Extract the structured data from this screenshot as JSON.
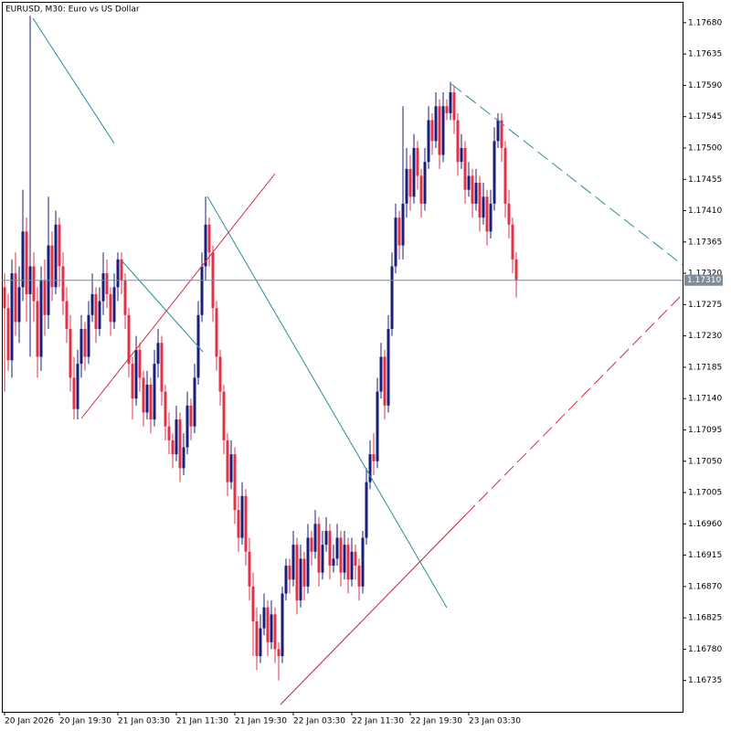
{
  "chart_data": {
    "type": "candlestick",
    "title": "EURUSD, M30:  Euro vs US Dollar",
    "up_color": "#1a1f7a",
    "down_color": "#e0334a",
    "price_line_color": "#7f8c9a",
    "current_price": {
      "value": 1.1731,
      "label": "1.17310"
    },
    "ylim": [
      1.1669,
      1.1771
    ],
    "yticks": [
      {
        "value": 1.1768,
        "label": "1.17680"
      },
      1.17635,
      {
        "value": 1.1759,
        "label": "1.17590"
      },
      1.17545,
      {
        "value": 1.175,
        "label": "1.17500"
      },
      1.17455,
      {
        "value": 1.1741,
        "label": "1.17410"
      },
      1.17365,
      {
        "value": 1.1732,
        "label": "1.17320"
      },
      1.17275,
      {
        "value": 1.1723,
        "label": "1.17230"
      },
      1.17185,
      {
        "value": 1.1714,
        "label": "1.17140"
      },
      1.17095,
      {
        "value": 1.1705,
        "label": "1.17050"
      },
      1.17005,
      {
        "value": 1.1696,
        "label": "1.16960"
      },
      1.16915,
      {
        "value": 1.1687,
        "label": "1.16870"
      },
      1.16825,
      {
        "value": 1.1678,
        "label": "1.16780"
      },
      1.16735
    ],
    "categories": [
      "20 Jan 2026",
      null,
      null,
      null,
      null,
      null,
      null,
      null,
      null,
      null,
      null,
      null,
      null,
      null,
      null,
      "20 Jan 19:30",
      null,
      null,
      null,
      null,
      null,
      null,
      null,
      null,
      null,
      null,
      null,
      null,
      null,
      null,
      null,
      "21 Jan 03:30",
      null,
      null,
      null,
      null,
      null,
      null,
      null,
      null,
      null,
      null,
      null,
      null,
      null,
      null,
      null,
      "21 Jan 11:30",
      null,
      null,
      null,
      null,
      null,
      null,
      null,
      null,
      null,
      null,
      null,
      null,
      null,
      null,
      null,
      "21 Jan 19:30",
      null,
      null,
      null,
      null,
      null,
      null,
      null,
      null,
      null,
      null,
      null,
      null,
      null,
      null,
      null,
      "22 Jan 03:30",
      null,
      null,
      null,
      null,
      null,
      null,
      null,
      null,
      null,
      null,
      null,
      null,
      null,
      null,
      null,
      "22 Jan 11:30",
      null,
      null,
      null,
      null,
      null,
      null,
      null,
      null,
      null,
      null,
      null,
      null,
      null,
      null,
      null,
      "22 Jan 19:30",
      null,
      null,
      null,
      null,
      null,
      null,
      null,
      null,
      null,
      null,
      null,
      null,
      null,
      null,
      null,
      "23 Jan 03:30",
      null,
      null,
      null,
      null,
      null,
      null,
      null,
      null,
      null,
      null,
      null,
      null,
      null
    ],
    "open": [
      1.173,
      1.1727,
      1.17195,
      1.1732,
      1.1725,
      1.173,
      1.1738,
      1.1729,
      1.1733,
      1.1728,
      1.172,
      1.1731,
      1.1726,
      1.1736,
      1.173,
      1.1739,
      1.1733,
      1.1728,
      1.1724,
      1.1717,
      1.17125,
      1.1719,
      1.1724,
      1.172,
      1.1726,
      1.1729,
      1.1724,
      1.1728,
      1.1732,
      1.1729,
      1.1725,
      1.173,
      1.1734,
      1.1731,
      1.1726,
      1.1719,
      1.1714,
      1.1721,
      1.1717,
      1.1712,
      1.1716,
      1.1711,
      1.1719,
      1.1722,
      1.1715,
      1.171,
      1.1708,
      1.1706,
      1.1711,
      1.1704,
      1.1707,
      1.1713,
      1.171,
      1.1717,
      1.1726,
      1.1733,
      1.1739,
      1.1735,
      1.1727,
      1.172,
      1.1715,
      1.1708,
      1.1702,
      1.1706,
      1.1698,
      1.1694,
      1.17,
      1.1692,
      1.1687,
      1.1682,
      1.1677,
      1.1681,
      1.1684,
      1.1679,
      1.1683,
      1.1678,
      1.1677,
      1.1686,
      1.169,
      1.1688,
      1.1693,
      1.1685,
      1.1691,
      1.1687,
      1.1694,
      1.1692,
      1.1696,
      1.1689,
      1.1693,
      1.1695,
      1.169,
      1.1691,
      1.1694,
      1.1689,
      1.1693,
      1.1688,
      1.1692,
      1.169,
      1.1687,
      1.1694,
      1.1702,
      1.1706,
      1.1705,
      1.1715,
      1.172,
      1.1713,
      1.1724,
      1.1733,
      1.174,
      1.1736,
      1.1742,
      1.1747,
      1.1743,
      1.175,
      1.1746,
      1.1742,
      1.1748,
      1.1754,
      1.1751,
      1.1756,
      1.1749,
      1.1756,
      1.1755,
      1.1758,
      1.1754,
      1.1748,
      1.175,
      1.1744,
      1.1746,
      1.1742,
      1.1745,
      1.174,
      1.1743,
      1.1738,
      1.1742,
      1.1751,
      1.1754,
      1.175,
      1.1742,
      1.1739,
      1.1734
    ],
    "high": [
      1.1732,
      1.1729,
      1.1734,
      1.1735,
      1.1733,
      1.1744,
      1.174,
      1.1769,
      1.1735,
      1.173,
      1.1733,
      1.1734,
      1.1743,
      1.1738,
      1.1741,
      1.174,
      1.1735,
      1.173,
      1.1726,
      1.172,
      1.1721,
      1.1726,
      1.1725,
      1.1728,
      1.1732,
      1.173,
      1.173,
      1.1735,
      1.1734,
      1.173,
      1.1732,
      1.1735,
      1.1735,
      1.1732,
      1.1727,
      1.172,
      1.1723,
      1.1722,
      1.1718,
      1.1718,
      1.1717,
      1.1721,
      1.1724,
      1.1723,
      1.1716,
      1.1712,
      1.1709,
      1.1713,
      1.1712,
      1.1709,
      1.1715,
      1.1714,
      1.1719,
      1.1728,
      1.1735,
      1.1743,
      1.174,
      1.1736,
      1.1728,
      1.1721,
      1.1716,
      1.1709,
      1.1708,
      1.1707,
      1.17,
      1.1702,
      1.1701,
      1.1694,
      1.1689,
      1.1684,
      1.1683,
      1.1686,
      1.1685,
      1.1685,
      1.1684,
      1.1679,
      1.1687,
      1.1691,
      1.1691,
      1.1695,
      1.1694,
      1.1693,
      1.1692,
      1.1696,
      1.1695,
      1.1698,
      1.1697,
      1.1695,
      1.1697,
      1.1696,
      1.1693,
      1.1696,
      1.1695,
      1.1695,
      1.1694,
      1.1694,
      1.1693,
      1.1691,
      1.1695,
      1.1704,
      1.1708,
      1.1709,
      1.1717,
      1.1722,
      1.1721,
      1.1726,
      1.1735,
      1.1742,
      1.1741,
      1.1756,
      1.175,
      1.1749,
      1.1752,
      1.1751,
      1.1747,
      1.175,
      1.1756,
      1.1755,
      1.1758,
      1.1757,
      1.1758,
      1.1757,
      1.17595,
      1.1759,
      1.1755,
      1.1752,
      1.1751,
      1.1748,
      1.1747,
      1.1747,
      1.1746,
      1.1745,
      1.1744,
      1.1744,
      1.1753,
      1.1755,
      1.1755,
      1.1751,
      1.1744,
      1.174,
      1.1735
    ],
    "low": [
      1.1715,
      1.1718,
      1.1717,
      1.1723,
      1.1722,
      1.1728,
      1.1725,
      1.172,
      1.1725,
      1.1717,
      1.1718,
      1.1723,
      1.1724,
      1.1728,
      1.1729,
      1.173,
      1.1726,
      1.1722,
      1.1715,
      1.1711,
      1.1711,
      1.1717,
      1.1718,
      1.1719,
      1.1725,
      1.1722,
      1.1723,
      1.1726,
      1.1727,
      1.1723,
      1.1724,
      1.1728,
      1.1729,
      1.1724,
      1.1717,
      1.1711,
      1.1713,
      1.1715,
      1.171,
      1.1711,
      1.1709,
      1.171,
      1.1717,
      1.1713,
      1.1708,
      1.1706,
      1.1704,
      1.1705,
      1.1702,
      1.1703,
      1.1706,
      1.1708,
      1.1709,
      1.1716,
      1.1725,
      1.1731,
      1.1733,
      1.1725,
      1.1718,
      1.1713,
      1.1706,
      1.17,
      1.1701,
      1.1696,
      1.1692,
      1.1693,
      1.169,
      1.1685,
      1.1677,
      1.1675,
      1.1676,
      1.168,
      1.1677,
      1.1678,
      1.1676,
      1.16735,
      1.1676,
      1.1685,
      1.1686,
      1.1687,
      1.1683,
      1.1684,
      1.1685,
      1.1686,
      1.169,
      1.1691,
      1.1687,
      1.1688,
      1.1692,
      1.1688,
      1.1689,
      1.169,
      1.1687,
      1.1688,
      1.1686,
      1.1687,
      1.1688,
      1.1685,
      1.1686,
      1.1693,
      1.1701,
      1.1703,
      1.1704,
      1.1714,
      1.1711,
      1.1712,
      1.1723,
      1.1732,
      1.1734,
      1.1734,
      1.174,
      1.1741,
      1.1742,
      1.1744,
      1.174,
      1.1741,
      1.1747,
      1.1749,
      1.175,
      1.1747,
      1.1748,
      1.1754,
      1.1754,
      1.1752,
      1.1746,
      1.1747,
      1.1742,
      1.1743,
      1.174,
      1.1741,
      1.1738,
      1.1739,
      1.1736,
      1.1737,
      1.1741,
      1.175,
      1.1748,
      1.174,
      1.1737,
      1.1732,
      1.17285
    ],
    "close": [
      1.1727,
      1.17195,
      1.1732,
      1.1725,
      1.173,
      1.1738,
      1.1729,
      1.1733,
      1.1728,
      1.172,
      1.1731,
      1.1726,
      1.1736,
      1.173,
      1.1739,
      1.1733,
      1.1728,
      1.1724,
      1.1717,
      1.17125,
      1.1719,
      1.1724,
      1.172,
      1.1726,
      1.1729,
      1.1724,
      1.1728,
      1.1732,
      1.1729,
      1.1725,
      1.173,
      1.1734,
      1.1731,
      1.1726,
      1.1719,
      1.1714,
      1.1721,
      1.1717,
      1.1712,
      1.1716,
      1.1711,
      1.1719,
      1.1722,
      1.1715,
      1.171,
      1.1708,
      1.1706,
      1.1711,
      1.1704,
      1.1707,
      1.1713,
      1.171,
      1.1717,
      1.1726,
      1.1733,
      1.1739,
      1.1735,
      1.1727,
      1.172,
      1.1715,
      1.1708,
      1.1702,
      1.1706,
      1.1698,
      1.1694,
      1.17,
      1.1692,
      1.1687,
      1.1682,
      1.1677,
      1.1681,
      1.1684,
      1.1679,
      1.1683,
      1.1678,
      1.1677,
      1.1686,
      1.169,
      1.1688,
      1.1693,
      1.1685,
      1.1691,
      1.1687,
      1.1694,
      1.1692,
      1.1696,
      1.1689,
      1.1693,
      1.1695,
      1.169,
      1.1691,
      1.1694,
      1.1689,
      1.1693,
      1.1688,
      1.1692,
      1.169,
      1.1687,
      1.1694,
      1.1702,
      1.1706,
      1.1705,
      1.1715,
      1.172,
      1.1713,
      1.1724,
      1.1733,
      1.174,
      1.1736,
      1.1742,
      1.1747,
      1.1743,
      1.175,
      1.1746,
      1.1742,
      1.1748,
      1.1754,
      1.1751,
      1.1756,
      1.1749,
      1.1756,
      1.1755,
      1.1758,
      1.1754,
      1.1748,
      1.175,
      1.1744,
      1.1746,
      1.1742,
      1.1745,
      1.174,
      1.1743,
      1.1738,
      1.1742,
      1.1751,
      1.1754,
      1.175,
      1.1742,
      1.1739,
      1.1734,
      1.1731
    ]
  }
}
